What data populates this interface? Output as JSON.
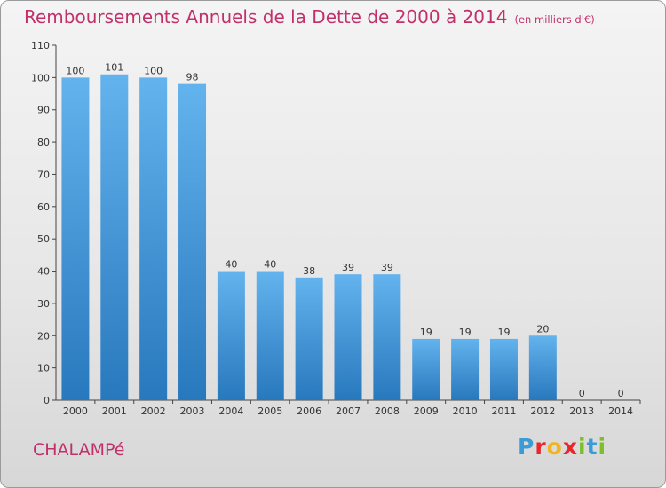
{
  "title": "Remboursements Annuels de la Dette de 2000 à 2014",
  "subtitle": "(en milliers d'€)",
  "commune": "CHALAMPé",
  "logo": {
    "letters": [
      "P",
      "r",
      "o",
      "x",
      "i",
      "t",
      "i"
    ],
    "colors": [
      "#3a9bd6",
      "#e8262b",
      "#f1b51b",
      "#e8262b",
      "#7cbf2a",
      "#3a9bd6",
      "#7cbf2a"
    ]
  },
  "colors": {
    "bar_light": "#61b0ec",
    "bar_dark": "#2a7bbf",
    "text_red": "#c2306a"
  },
  "chart_data": {
    "type": "bar",
    "title": "Remboursements Annuels de la Dette de 2000 à 2014",
    "categories": [
      "2000",
      "2001",
      "2002",
      "2003",
      "2004",
      "2005",
      "2006",
      "2007",
      "2008",
      "2009",
      "2010",
      "2011",
      "2012",
      "2013",
      "2014"
    ],
    "values": [
      100,
      101,
      100,
      98,
      40,
      40,
      38,
      39,
      39,
      19,
      19,
      19,
      20,
      0,
      0
    ],
    "ylim": [
      0,
      110
    ],
    "yticks": [
      0,
      10,
      20,
      30,
      40,
      50,
      60,
      70,
      80,
      90,
      100,
      110
    ],
    "grid": false
  }
}
